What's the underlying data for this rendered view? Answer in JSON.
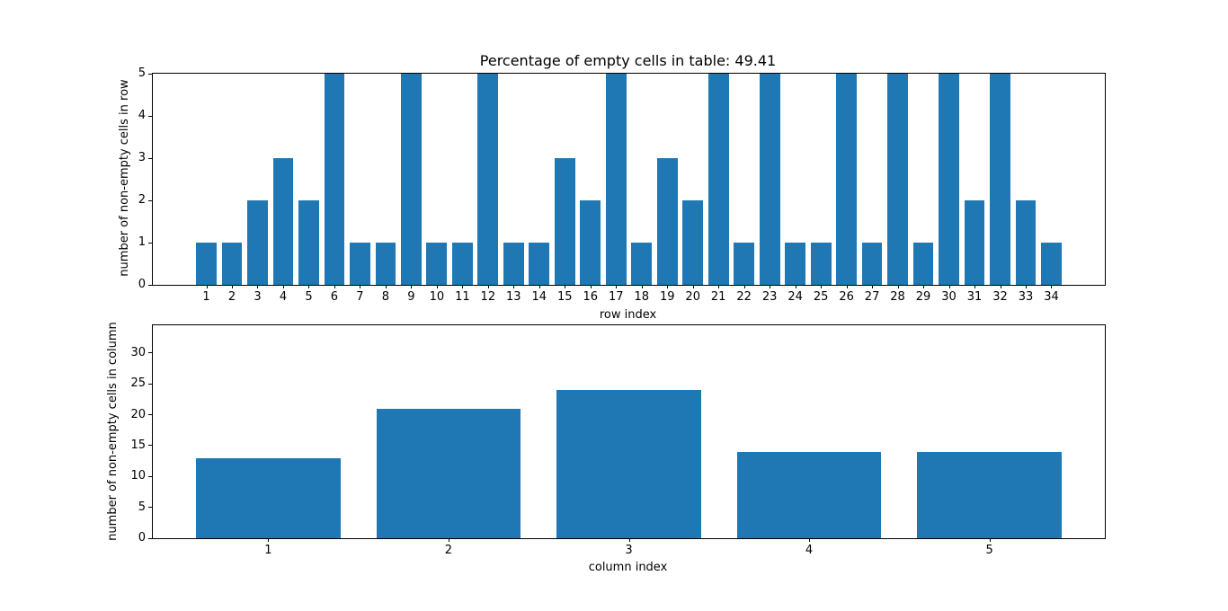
{
  "figure": {
    "background": "#ffffff",
    "axis_color": "#000000",
    "text_color": "#000000"
  },
  "chart_data": [
    {
      "type": "bar",
      "title": "Percentage of empty cells in table: 49.41",
      "xlabel": "row index",
      "ylabel": "number of non-empty cells in row",
      "categories": [
        1,
        2,
        3,
        4,
        5,
        6,
        7,
        8,
        9,
        10,
        11,
        12,
        13,
        14,
        15,
        16,
        17,
        18,
        19,
        20,
        21,
        22,
        23,
        24,
        25,
        26,
        27,
        28,
        29,
        30,
        31,
        32,
        33,
        34
      ],
      "values": [
        1,
        1,
        2,
        3,
        2,
        5,
        1,
        1,
        5,
        1,
        1,
        5,
        1,
        1,
        3,
        2,
        5,
        1,
        3,
        2,
        5,
        1,
        5,
        1,
        1,
        5,
        1,
        5,
        1,
        5,
        2,
        5,
        2,
        1
      ],
      "ylim": [
        0,
        5
      ],
      "yticks": [
        0,
        1,
        2,
        3,
        4,
        5
      ],
      "bar_width": 0.8,
      "bar_color": "#1f77b4",
      "grid": false,
      "legend": null
    },
    {
      "type": "bar",
      "title": "",
      "xlabel": "column index",
      "ylabel": "number of non-empty cells in column",
      "categories": [
        1,
        2,
        3,
        4,
        5
      ],
      "values": [
        13,
        21,
        24,
        14,
        14
      ],
      "ylim": [
        0,
        34.5
      ],
      "yticks": [
        0,
        5,
        10,
        15,
        20,
        25,
        30
      ],
      "bar_width": 0.8,
      "bar_color": "#1f77b4",
      "grid": false,
      "legend": null
    }
  ]
}
